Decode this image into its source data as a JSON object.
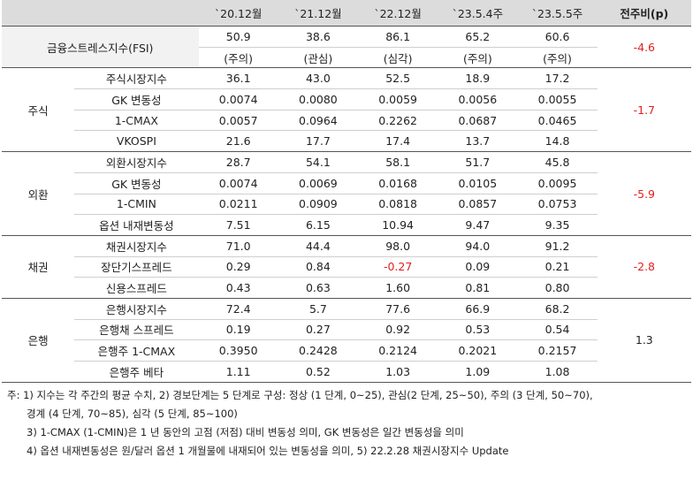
{
  "header": {
    "blank": "",
    "dates": [
      "`20.12월",
      "`21.12월",
      "`22.12월",
      "`23.5.4주",
      "`23.5.5주"
    ],
    "change_label": "전주비(p)"
  },
  "fsi": {
    "label": "금융스트레스지수(FSI)",
    "values": [
      "50.9",
      "38.6",
      "86.1",
      "65.2",
      "60.6"
    ],
    "levels": [
      "(주의)",
      "(관심)",
      "(심각)",
      "(주의)",
      "(주의)"
    ],
    "change": "-4.6"
  },
  "groups": [
    {
      "category": "주식",
      "change": "-1.7",
      "rows": [
        {
          "label": "주식시장지수",
          "values": [
            "36.1",
            "43.0",
            "52.5",
            "18.9",
            "17.2"
          ]
        },
        {
          "label": "GK 변동성",
          "values": [
            "0.0074",
            "0.0080",
            "0.0059",
            "0.0056",
            "0.0055"
          ]
        },
        {
          "label": "1-CMAX",
          "values": [
            "0.0057",
            "0.0964",
            "0.2262",
            "0.0687",
            "0.0465"
          ]
        },
        {
          "label": "VKOSPI",
          "values": [
            "21.6",
            "17.7",
            "17.4",
            "13.7",
            "14.8"
          ]
        }
      ]
    },
    {
      "category": "외환",
      "change": "-5.9",
      "rows": [
        {
          "label": "외환시장지수",
          "values": [
            "28.7",
            "54.1",
            "58.1",
            "51.7",
            "45.8"
          ]
        },
        {
          "label": "GK 변동성",
          "values": [
            "0.0074",
            "0.0069",
            "0.0168",
            "0.0105",
            "0.0095"
          ]
        },
        {
          "label": "1-CMIN",
          "values": [
            "0.0211",
            "0.0909",
            "0.0818",
            "0.0857",
            "0.0753"
          ]
        },
        {
          "label": "옵션 내재변동성",
          "values": [
            "7.51",
            "6.15",
            "10.94",
            "9.47",
            "9.35"
          ]
        }
      ]
    },
    {
      "category": "채권",
      "change": "-2.8",
      "rows": [
        {
          "label": "채권시장지수",
          "values": [
            "71.0",
            "44.4",
            "98.0",
            "94.0",
            "91.2"
          ]
        },
        {
          "label": "장단기스프레드",
          "values": [
            "0.29",
            "0.84",
            "-0.27",
            "0.09",
            "0.21"
          ]
        },
        {
          "label": "신용스프레드",
          "values": [
            "0.43",
            "0.63",
            "1.60",
            "0.81",
            "0.80"
          ]
        }
      ]
    },
    {
      "category": "은행",
      "change": "1.3",
      "rows": [
        {
          "label": "은행시장지수",
          "values": [
            "72.4",
            "5.7",
            "77.6",
            "66.9",
            "68.2"
          ]
        },
        {
          "label": "은행채 스프레드",
          "values": [
            "0.19",
            "0.27",
            "0.92",
            "0.53",
            "0.54"
          ]
        },
        {
          "label": "은행주 1-CMAX",
          "values": [
            "0.3950",
            "0.2428",
            "0.2124",
            "0.2021",
            "0.2157"
          ]
        },
        {
          "label": "은행주 베타",
          "values": [
            "1.11",
            "0.52",
            "1.03",
            "1.09",
            "1.08"
          ]
        }
      ]
    }
  ],
  "notes": [
    "주: 1) 지수는 각 주간의 평균 수치, 2) 경보단계는 5 단계로 구성: 정상 (1 단계, 0~25), 관심(2 단계, 25~50), 주의 (3 단계, 50~70),",
    "경계 (4 단계, 70~85), 심각 (5 단계, 85~100)",
    "3) 1-CMAX (1-CMIN)은 1 년 동안의 고점 (저점) 대비 변동성 의미, GK 변동성은 일간 변동성을 의미",
    "4) 옵션 내재변동성은 원/달러 옵션 1 개월물에 내재되어 있는 변동성을 의미, 5) 22.2.28 채권시장지수 Update"
  ]
}
